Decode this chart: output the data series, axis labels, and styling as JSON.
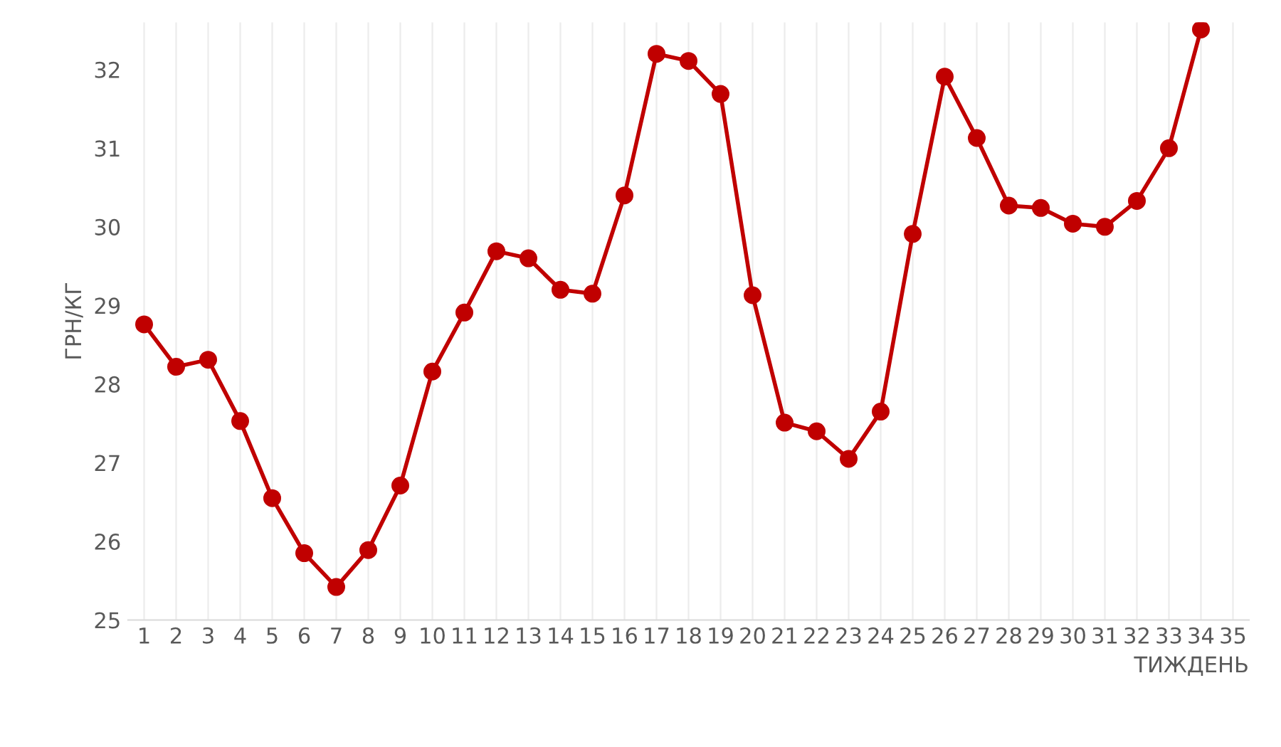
{
  "chart_data": {
    "type": "line",
    "xlabel": "ТИЖДЕНЬ",
    "ylabel": "ГРН/КГ",
    "categories": [
      "1",
      "2",
      "3",
      "4",
      "5",
      "6",
      "7",
      "8",
      "9",
      "10",
      "11",
      "12",
      "13",
      "14",
      "15",
      "16",
      "17",
      "18",
      "19",
      "20",
      "21",
      "22",
      "23",
      "24",
      "25",
      "26",
      "27",
      "28",
      "29",
      "30",
      "31",
      "32",
      "33",
      "34",
      "35"
    ],
    "series": [
      {
        "color": "#c00000",
        "values": [
          28.76,
          28.22,
          28.31,
          27.53,
          26.55,
          25.85,
          25.42,
          25.89,
          26.71,
          28.16,
          28.91,
          29.69,
          29.6,
          29.2,
          29.15,
          30.4,
          32.2,
          32.11,
          31.69,
          29.13,
          27.51,
          27.4,
          27.05,
          27.65,
          29.91,
          31.91,
          31.13,
          30.27,
          30.24,
          30.04,
          30.0,
          30.33,
          31.0,
          32.51,
          null
        ]
      }
    ],
    "ylim": [
      25,
      32.6
    ],
    "yticks": [
      25,
      26,
      27,
      28,
      29,
      30,
      31,
      32
    ],
    "grid": "x",
    "marker": "circle",
    "line_style": "solid",
    "legend": false
  }
}
